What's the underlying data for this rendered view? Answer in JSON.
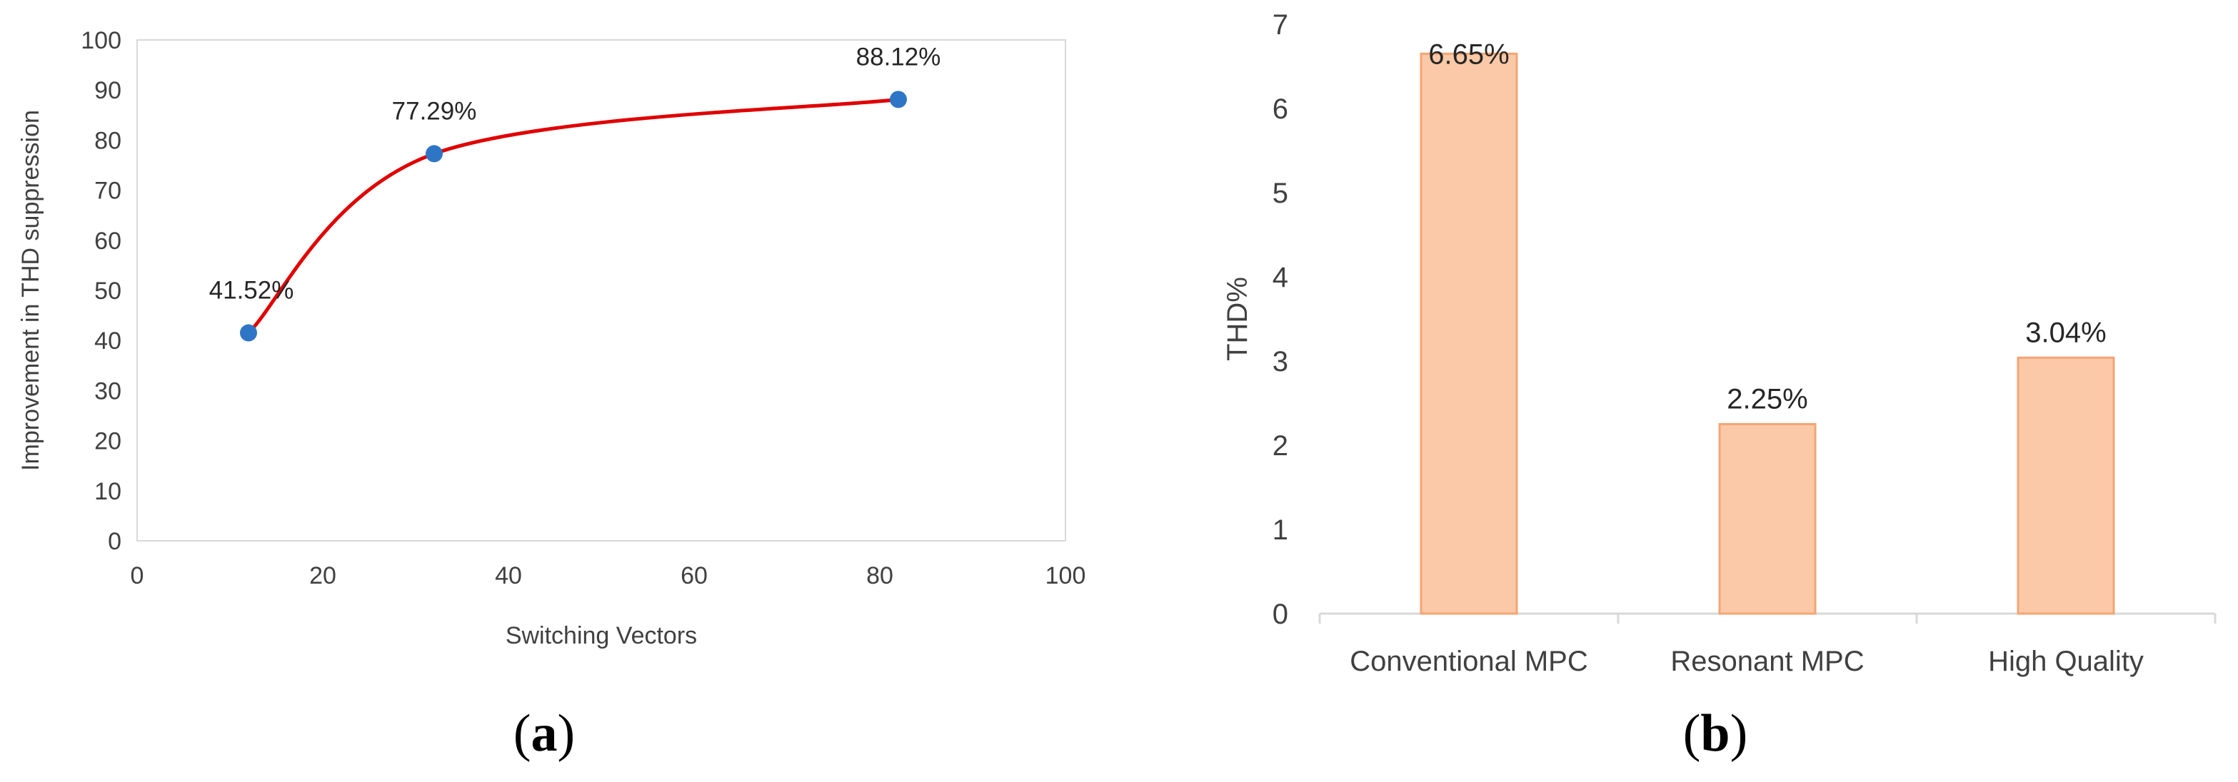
{
  "chart_data": [
    {
      "type": "scatter",
      "caption": "(a)",
      "caption_letter": "a",
      "xlabel": "Switching Vectors",
      "ylabel": "Improvement in THD suppression",
      "xlim": [
        0,
        100
      ],
      "ylim": [
        0,
        100
      ],
      "x_ticks": [
        0,
        20,
        40,
        60,
        80,
        100
      ],
      "y_ticks": [
        0,
        10,
        20,
        30,
        40,
        50,
        60,
        70,
        80,
        90,
        100
      ],
      "grid": false,
      "line_style": "smooth",
      "line_color": "#e00000",
      "marker_color": "#2e75c6",
      "points": [
        {
          "x": 12,
          "y": 41.52,
          "label": "41.52%"
        },
        {
          "x": 32,
          "y": 77.29,
          "label": "77.29%"
        },
        {
          "x": 82,
          "y": 88.12,
          "label": "88.12%"
        }
      ]
    },
    {
      "type": "bar",
      "caption": "(b)",
      "caption_letter": "b",
      "ylabel": "THD%",
      "xlabel": "",
      "ylim": [
        0,
        7
      ],
      "y_ticks": [
        0,
        1,
        2,
        3,
        4,
        5,
        6,
        7
      ],
      "grid": false,
      "bar_fill": "#fbc9a7",
      "bar_edge": "#f4a574",
      "categories": [
        "Conventional MPC",
        "Resonant MPC",
        "High Quality"
      ],
      "values": [
        6.65,
        2.25,
        3.04
      ],
      "value_labels": [
        "6.65%",
        "2.25%",
        "3.04%"
      ]
    }
  ]
}
